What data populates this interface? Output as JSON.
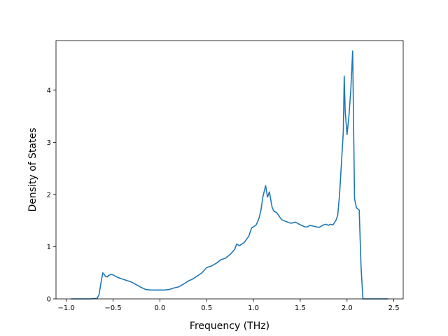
{
  "chart_data": {
    "type": "line",
    "title": "",
    "xlabel": "Frequency (THz)",
    "ylabel": "Density of States",
    "xlim": [
      -1.11,
      2.6
    ],
    "ylim": [
      0,
      4.95
    ],
    "xticks": [
      -1.0,
      -0.5,
      0.0,
      0.5,
      1.0,
      1.5,
      2.0,
      2.5
    ],
    "xtick_labels": [
      "−1.0",
      "−0.5",
      "0.0",
      "0.5",
      "1.0",
      "1.5",
      "2.0",
      "2.5"
    ],
    "yticks": [
      0,
      1,
      2,
      3,
      4
    ],
    "ytick_labels": [
      "0",
      "1",
      "2",
      "3",
      "4"
    ],
    "grid": false,
    "legend": "none",
    "series": [
      {
        "color": "#1f77b4",
        "x": [
          -0.95,
          -0.85,
          -0.75,
          -0.67,
          -0.65,
          -0.63,
          -0.61,
          -0.6,
          -0.58,
          -0.56,
          -0.55,
          -0.52,
          -0.5,
          -0.48,
          -0.45,
          -0.4,
          -0.35,
          -0.3,
          -0.25,
          -0.2,
          -0.15,
          -0.1,
          -0.05,
          0.0,
          0.05,
          0.1,
          0.15,
          0.2,
          0.25,
          0.3,
          0.35,
          0.4,
          0.45,
          0.48,
          0.5,
          0.55,
          0.6,
          0.65,
          0.7,
          0.75,
          0.8,
          0.82,
          0.85,
          0.9,
          0.95,
          0.98,
          1.0,
          1.03,
          1.06,
          1.08,
          1.1,
          1.13,
          1.15,
          1.17,
          1.2,
          1.22,
          1.25,
          1.3,
          1.35,
          1.4,
          1.45,
          1.5,
          1.55,
          1.58,
          1.6,
          1.65,
          1.7,
          1.75,
          1.78,
          1.8,
          1.82,
          1.85,
          1.88,
          1.9,
          1.92,
          1.94,
          1.96,
          1.97,
          1.98,
          2.0,
          2.02,
          2.04,
          2.06,
          2.08,
          2.1,
          2.13,
          2.15,
          2.17,
          2.25,
          2.35,
          2.44
        ],
        "y": [
          0.0,
          0.0,
          0.0,
          0.01,
          0.08,
          0.3,
          0.5,
          0.48,
          0.43,
          0.42,
          0.45,
          0.47,
          0.46,
          0.44,
          0.41,
          0.38,
          0.35,
          0.32,
          0.27,
          0.22,
          0.18,
          0.17,
          0.17,
          0.17,
          0.17,
          0.18,
          0.21,
          0.23,
          0.28,
          0.34,
          0.38,
          0.44,
          0.5,
          0.56,
          0.6,
          0.63,
          0.68,
          0.75,
          0.78,
          0.85,
          0.95,
          1.05,
          1.02,
          1.08,
          1.2,
          1.36,
          1.38,
          1.42,
          1.55,
          1.7,
          1.95,
          2.17,
          1.95,
          2.05,
          1.75,
          1.68,
          1.65,
          1.52,
          1.48,
          1.45,
          1.47,
          1.42,
          1.38,
          1.38,
          1.41,
          1.39,
          1.37,
          1.42,
          1.43,
          1.41,
          1.43,
          1.42,
          1.5,
          1.6,
          2.0,
          2.6,
          3.2,
          4.27,
          3.6,
          3.15,
          3.5,
          4.0,
          4.75,
          1.92,
          1.75,
          1.7,
          0.6,
          0.0,
          0.0,
          0.0,
          0.0
        ]
      }
    ]
  }
}
